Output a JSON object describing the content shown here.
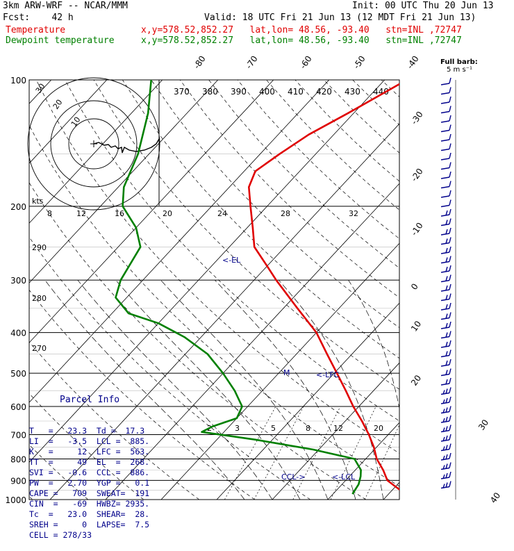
{
  "header": {
    "model": "3km ARW-WRF -- NCAR/MMM",
    "init": "Init: 00 UTC Thu 20 Jun 13",
    "fcst": "Fcst:    42 h",
    "valid": "Valid: 18 UTC Fri 21 Jun 13 (12 MDT Fri 21 Jun 13)",
    "temp_label": "Temperature",
    "dew_label": "Dewpoint temperature",
    "temp_loc": "x,y=578.52,852.27   lat,lon= 48.56, -93.40   stn=INL ,72747",
    "dew_loc": "x,y=578.52,852.27   lat,lon= 48.56, -93.40   stn=INL ,72747"
  },
  "colors": {
    "temperature": "#e00000",
    "dewpoint": "#008000",
    "barbs": "#00008b",
    "axes": "#000000"
  },
  "chart_data": {
    "type": "line",
    "pressure_ticks": [
      100,
      200,
      300,
      400,
      500,
      600,
      700,
      800,
      900,
      1000
    ],
    "temp_ticks_top": [
      "-80",
      "-70",
      "-60",
      "-50",
      "-40",
      "-30",
      "-20",
      "-10",
      "0",
      "10",
      "20",
      "30",
      "40"
    ],
    "theta_labels": [
      "370",
      "380",
      "390",
      "400",
      "410",
      "420",
      "430",
      "440"
    ],
    "mixing_ratio_labels": [
      "2",
      "3",
      "5",
      "8",
      "12",
      "20"
    ],
    "speed_ring_labels": [
      "kts",
      "8",
      "12",
      "16",
      "20",
      "24",
      "28",
      "32"
    ],
    "theta_e_labels": [
      "290",
      "280",
      "270"
    ],
    "full_barb_label": "Full barb:",
    "full_barb_unit": "5 m s⁻¹",
    "temperature_profile": [
      {
        "p": 1000,
        "t": 24.5
      },
      {
        "p": 950,
        "t": 21.5
      },
      {
        "p": 925,
        "t": 19.5
      },
      {
        "p": 900,
        "t": 17.5
      },
      {
        "p": 850,
        "t": 15.0
      },
      {
        "p": 800,
        "t": 12.0
      },
      {
        "p": 750,
        "t": 9.5
      },
      {
        "p": 700,
        "t": 6.5
      },
      {
        "p": 650,
        "t": 3.0
      },
      {
        "p": 600,
        "t": -1.0
      },
      {
        "p": 550,
        "t": -5.0
      },
      {
        "p": 500,
        "t": -9.5
      },
      {
        "p": 450,
        "t": -14.5
      },
      {
        "p": 400,
        "t": -20.0
      },
      {
        "p": 350,
        "t": -27.5
      },
      {
        "p": 300,
        "t": -36.0
      },
      {
        "p": 275,
        "t": -40.5
      },
      {
        "p": 250,
        "t": -45.5
      },
      {
        "p": 225,
        "t": -49.0
      },
      {
        "p": 200,
        "t": -53.0
      },
      {
        "p": 180,
        "t": -56.5
      },
      {
        "p": 165,
        "t": -58.0
      },
      {
        "p": 150,
        "t": -56.5
      },
      {
        "p": 135,
        "t": -54.5
      },
      {
        "p": 120,
        "t": -51.0
      },
      {
        "p": 100,
        "t": -46.0
      }
    ],
    "dewpoint_profile": [
      {
        "p": 970,
        "t": 13.5
      },
      {
        "p": 920,
        "t": 13.0
      },
      {
        "p": 880,
        "t": 12.0
      },
      {
        "p": 850,
        "t": 11.0
      },
      {
        "p": 800,
        "t": 8.0
      },
      {
        "p": 760,
        "t": -1.0
      },
      {
        "p": 720,
        "t": -13.0
      },
      {
        "p": 690,
        "t": -24.0
      },
      {
        "p": 670,
        "t": -23.0
      },
      {
        "p": 640,
        "t": -20.0
      },
      {
        "p": 600,
        "t": -21.0
      },
      {
        "p": 550,
        "t": -25.0
      },
      {
        "p": 500,
        "t": -30.0
      },
      {
        "p": 450,
        "t": -36.0
      },
      {
        "p": 410,
        "t": -43.0
      },
      {
        "p": 380,
        "t": -50.0
      },
      {
        "p": 360,
        "t": -57.0
      },
      {
        "p": 330,
        "t": -62.0
      },
      {
        "p": 300,
        "t": -64.0
      },
      {
        "p": 250,
        "t": -66.0
      },
      {
        "p": 225,
        "t": -70.0
      },
      {
        "p": 200,
        "t": -76.0
      },
      {
        "p": 180,
        "t": -79.0
      },
      {
        "p": 150,
        "t": -82.0
      },
      {
        "p": 120,
        "t": -87.0
      },
      {
        "p": 100,
        "t": -92.0
      }
    ],
    "annotations": {
      "el": "<-EL",
      "lfc": "<-LFC",
      "ccl": "CCL->",
      "lcl": "<-LCL",
      "m": "M"
    }
  },
  "parcel": {
    "title": "Parcel Info",
    "rows": [
      "T   =   23.3  Td =  17.3",
      "LI  =   -3.5  LCL =  885.",
      "K   =     12  LFC =  563.",
      "TT  =     49  EL  =  268.",
      "SVI =   -0.6  CCL =  886.",
      "PW  =   2.70  YGP =   0.1",
      "CAPE =   709  SWEAT=  191",
      "CIN  =   -69  HWBZ= 2935.",
      "Tc  =   23.0  SHEAR=  28.",
      "SREH =     0  LAPSE=  7.5",
      "CELL = 278/33"
    ]
  }
}
